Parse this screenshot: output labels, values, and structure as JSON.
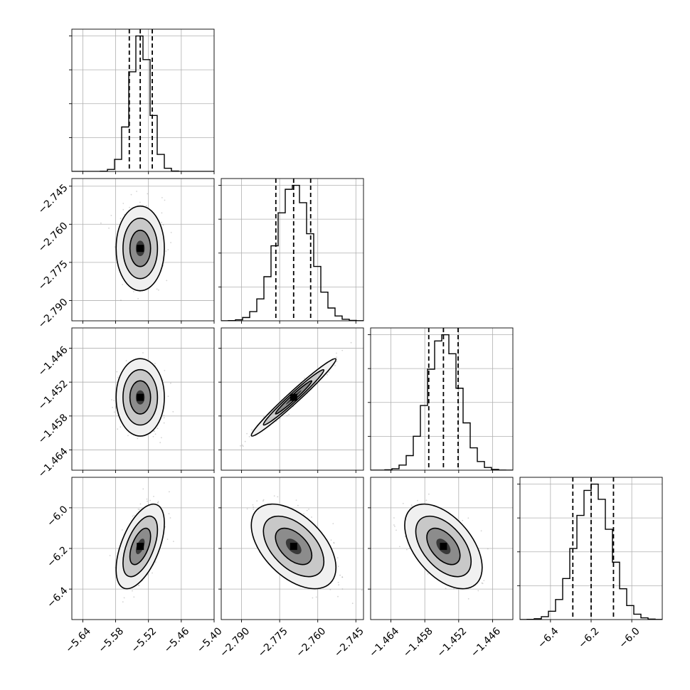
{
  "figure": {
    "background": "#ffffff"
  },
  "style": {
    "axis_color": "#000000",
    "grid_color": "#b0b0b0",
    "hist_color": "#000000",
    "density_colormap": [
      "#ffffff",
      "#000000"
    ],
    "sample_point_color": "#808080"
  },
  "chart_data": {
    "type": "corner",
    "n_params": 4,
    "grid": true,
    "quantile_lines": "dashed",
    "params": [
      {
        "range": [
          -5.66,
          -5.4
        ],
        "ticks": [
          -5.64,
          -5.58,
          -5.52,
          -5.46,
          -5.4
        ],
        "tick_labels": [
          "−5.64",
          "−5.58",
          "−5.52",
          "−5.46",
          "−5.40"
        ],
        "center": -5.535,
        "sd": 0.018,
        "quantiles": [
          -5.555,
          -5.535,
          -5.513
        ]
      },
      {
        "range": [
          -2.798,
          -2.742
        ],
        "ticks": [
          -2.79,
          -2.775,
          -2.76,
          -2.745
        ],
        "tick_labels": [
          "−2.790",
          "−2.775",
          "−2.760",
          "−2.745"
        ],
        "center": -2.7695,
        "sd": 0.0068,
        "quantiles": [
          -2.7765,
          -2.7695,
          -2.7628
        ]
      },
      {
        "range": [
          -1.4676,
          -1.4424
        ],
        "ticks": [
          -1.464,
          -1.458,
          -1.452,
          -1.446
        ],
        "tick_labels": [
          "−1.464",
          "−1.458",
          "−1.452",
          "−1.446"
        ],
        "center": -1.4547,
        "sd": 0.0028,
        "quantiles": [
          -1.4573,
          -1.4547,
          -1.4521
        ]
      },
      {
        "range": [
          -6.55,
          -5.85
        ],
        "ticks": [
          -6.4,
          -6.2,
          -6.0
        ],
        "tick_labels": [
          "−6.4",
          "−6.2",
          "−6.0"
        ],
        "center": -6.19,
        "sd": 0.085,
        "quantiles": [
          -6.29,
          -6.2,
          -6.09
        ]
      }
    ],
    "correlations": [
      [
        1.0,
        0.0,
        0.0,
        0.55
      ],
      [
        0.0,
        1.0,
        0.98,
        -0.5
      ],
      [
        0.0,
        0.98,
        1.0,
        -0.5
      ],
      [
        0.55,
        -0.5,
        -0.5,
        1.0
      ]
    ]
  }
}
